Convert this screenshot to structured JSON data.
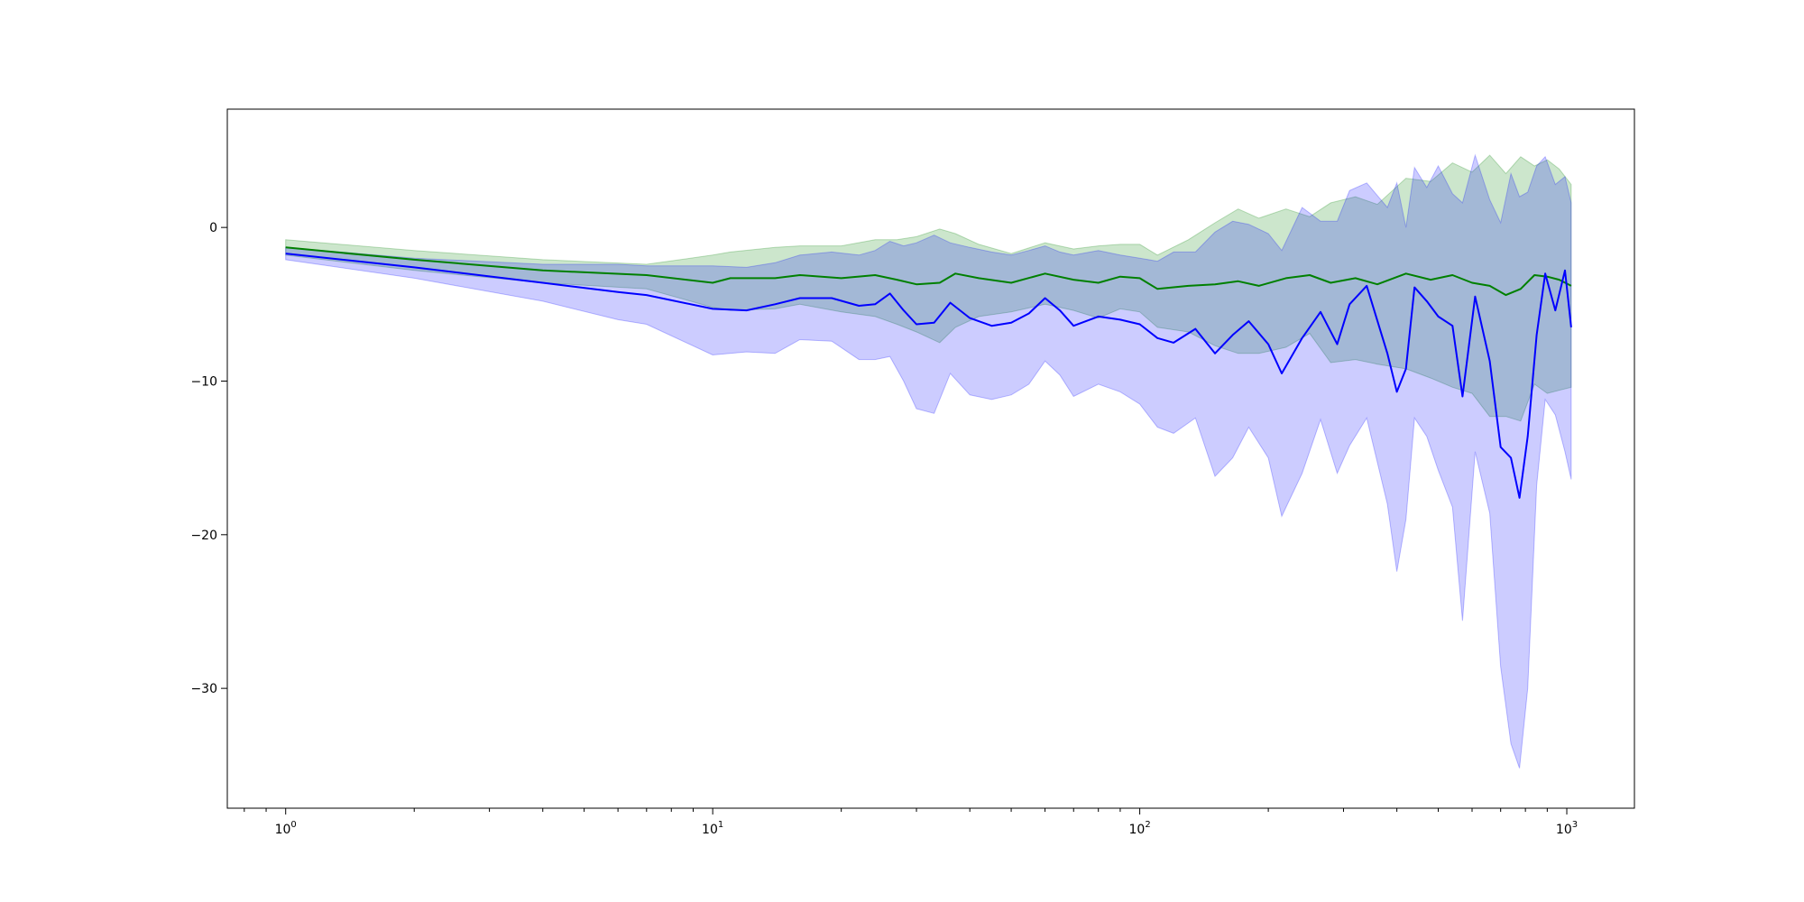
{
  "chart_data": {
    "type": "line",
    "title": "",
    "xlabel": "",
    "ylabel": "",
    "xscale": "log",
    "xlim": [
      0.73,
      1440
    ],
    "ylim": [
      -37.8,
      7.7
    ],
    "grid": false,
    "legend": "none",
    "x_ticks": [
      {
        "value": 1,
        "base": "10",
        "exp": "0"
      },
      {
        "value": 10,
        "base": "10",
        "exp": "1"
      },
      {
        "value": 100,
        "base": "10",
        "exp": "2"
      },
      {
        "value": 1000,
        "base": "10",
        "exp": "3"
      }
    ],
    "y_ticks": [
      {
        "value": 0,
        "label": "0"
      },
      {
        "value": -10,
        "label": "−10"
      },
      {
        "value": -20,
        "label": "−20"
      },
      {
        "value": -30,
        "label": "−30"
      }
    ],
    "series": [
      {
        "color": "#008000",
        "band_color": "#008000",
        "band_opacity": 0.2,
        "points": [
          [
            1,
            -1.3,
            -0.8,
            -1.8
          ],
          [
            2,
            -2.1,
            -1.5,
            -2.8
          ],
          [
            4,
            -2.8,
            -2.1,
            -3.6
          ],
          [
            7,
            -3.1,
            -2.4,
            -4.0
          ],
          [
            10,
            -3.6,
            -1.8,
            -5.2
          ],
          [
            11,
            -3.3,
            -1.6,
            -5.4
          ],
          [
            14,
            -3.3,
            -1.3,
            -5.3
          ],
          [
            16,
            -3.1,
            -1.2,
            -5.0
          ],
          [
            20,
            -3.3,
            -1.2,
            -5.5
          ],
          [
            24,
            -3.1,
            -0.8,
            -5.8
          ],
          [
            27,
            -3.4,
            -0.8,
            -6.3
          ],
          [
            30,
            -3.7,
            -0.6,
            -6.8
          ],
          [
            34,
            -3.6,
            -0.1,
            -7.5
          ],
          [
            37,
            -3.0,
            -0.4,
            -6.5
          ],
          [
            42,
            -3.3,
            -1.1,
            -5.8
          ],
          [
            50,
            -3.6,
            -1.7,
            -5.5
          ],
          [
            60,
            -3.0,
            -1.0,
            -5.0
          ],
          [
            70,
            -3.4,
            -1.4,
            -5.4
          ],
          [
            80,
            -3.6,
            -1.2,
            -5.9
          ],
          [
            90,
            -3.2,
            -1.1,
            -5.3
          ],
          [
            100,
            -3.3,
            -1.1,
            -5.5
          ],
          [
            110,
            -4.0,
            -1.8,
            -6.5
          ],
          [
            130,
            -3.8,
            -0.8,
            -6.8
          ],
          [
            150,
            -3.7,
            0.3,
            -7.7
          ],
          [
            170,
            -3.5,
            1.2,
            -8.2
          ],
          [
            190,
            -3.8,
            0.6,
            -8.2
          ],
          [
            220,
            -3.3,
            1.2,
            -7.8
          ],
          [
            250,
            -3.1,
            0.7,
            -6.9
          ],
          [
            280,
            -3.6,
            1.6,
            -8.8
          ],
          [
            320,
            -3.3,
            2.0,
            -8.6
          ],
          [
            360,
            -3.7,
            1.5,
            -8.9
          ],
          [
            420,
            -3.0,
            3.2,
            -9.2
          ],
          [
            480,
            -3.4,
            3.0,
            -9.8
          ],
          [
            540,
            -3.1,
            4.2,
            -10.4
          ],
          [
            600,
            -3.6,
            3.6,
            -10.8
          ],
          [
            660,
            -3.8,
            4.7,
            -12.3
          ],
          [
            720,
            -4.4,
            3.5,
            -12.3
          ],
          [
            780,
            -4.0,
            4.6,
            -12.6
          ],
          [
            840,
            -3.1,
            4.0,
            -10.2
          ],
          [
            900,
            -3.2,
            4.4,
            -10.8
          ],
          [
            960,
            -3.4,
            3.8,
            -10.6
          ],
          [
            1024,
            -3.8,
            2.8,
            -10.4
          ]
        ]
      },
      {
        "color": "#0000ff",
        "band_color": "#0000ff",
        "band_opacity": 0.2,
        "points": [
          [
            1,
            -1.7,
            -1.3,
            -2.1
          ],
          [
            2,
            -2.6,
            -2.0,
            -3.3
          ],
          [
            4,
            -3.6,
            -2.4,
            -4.8
          ],
          [
            6,
            -4.2,
            -2.4,
            -6.0
          ],
          [
            7,
            -4.4,
            -2.5,
            -6.3
          ],
          [
            10,
            -5.3,
            -2.5,
            -8.3
          ],
          [
            12,
            -5.4,
            -2.6,
            -8.1
          ],
          [
            14,
            -5.0,
            -2.3,
            -8.2
          ],
          [
            16,
            -4.6,
            -1.8,
            -7.3
          ],
          [
            19,
            -4.6,
            -1.6,
            -7.4
          ],
          [
            22,
            -5.1,
            -1.8,
            -8.6
          ],
          [
            24,
            -5.0,
            -1.5,
            -8.6
          ],
          [
            26,
            -4.3,
            -0.9,
            -8.4
          ],
          [
            28,
            -5.4,
            -1.2,
            -10.0
          ],
          [
            30,
            -6.3,
            -1.0,
            -11.8
          ],
          [
            33,
            -6.2,
            -0.5,
            -12.1
          ],
          [
            36,
            -4.9,
            -1.0,
            -9.5
          ],
          [
            40,
            -5.9,
            -1.3,
            -10.9
          ],
          [
            45,
            -6.4,
            -1.6,
            -11.2
          ],
          [
            50,
            -6.2,
            -1.8,
            -10.9
          ],
          [
            55,
            -5.6,
            -1.5,
            -10.2
          ],
          [
            60,
            -4.6,
            -1.2,
            -8.7
          ],
          [
            65,
            -5.4,
            -1.6,
            -9.6
          ],
          [
            70,
            -6.4,
            -1.8,
            -11.0
          ],
          [
            80,
            -5.8,
            -1.5,
            -10.2
          ],
          [
            90,
            -6.0,
            -1.8,
            -10.7
          ],
          [
            100,
            -6.3,
            -2.0,
            -11.5
          ],
          [
            110,
            -7.2,
            -2.2,
            -13.0
          ],
          [
            120,
            -7.5,
            -1.6,
            -13.4
          ],
          [
            135,
            -6.6,
            -1.6,
            -12.4
          ],
          [
            150,
            -8.2,
            -0.3,
            -16.2
          ],
          [
            165,
            -7.0,
            0.4,
            -15.0
          ],
          [
            180,
            -6.1,
            0.2,
            -13.0
          ],
          [
            200,
            -7.6,
            -0.4,
            -15.0
          ],
          [
            215,
            -9.5,
            -1.5,
            -18.8
          ],
          [
            240,
            -7.2,
            1.3,
            -16.0
          ],
          [
            265,
            -5.5,
            0.4,
            -12.5
          ],
          [
            290,
            -7.6,
            0.4,
            -16.0
          ],
          [
            310,
            -5.0,
            2.4,
            -14.2
          ],
          [
            340,
            -3.8,
            2.9,
            -12.4
          ],
          [
            380,
            -8.2,
            1.3,
            -18.0
          ],
          [
            400,
            -10.7,
            2.9,
            -22.4
          ],
          [
            420,
            -9.2,
            0.0,
            -19.0
          ],
          [
            440,
            -3.9,
            3.9,
            -12.4
          ],
          [
            470,
            -4.8,
            2.6,
            -13.6
          ],
          [
            500,
            -5.8,
            4.0,
            -15.8
          ],
          [
            540,
            -6.4,
            2.2,
            -18.2
          ],
          [
            570,
            -11.0,
            1.6,
            -25.6
          ],
          [
            610,
            -4.5,
            4.7,
            -14.6
          ],
          [
            660,
            -8.7,
            1.8,
            -18.6
          ],
          [
            700,
            -14.3,
            0.3,
            -28.6
          ],
          [
            740,
            -15.0,
            3.5,
            -33.6
          ],
          [
            775,
            -17.6,
            2.0,
            -35.2
          ],
          [
            810,
            -13.6,
            2.3,
            -30.0
          ],
          [
            850,
            -7.0,
            4.0,
            -16.8
          ],
          [
            890,
            -3.0,
            4.6,
            -11.2
          ],
          [
            940,
            -5.4,
            2.8,
            -12.2
          ],
          [
            990,
            -2.8,
            3.3,
            -14.6
          ],
          [
            1024,
            -6.5,
            1.6,
            -16.4
          ]
        ]
      }
    ]
  }
}
